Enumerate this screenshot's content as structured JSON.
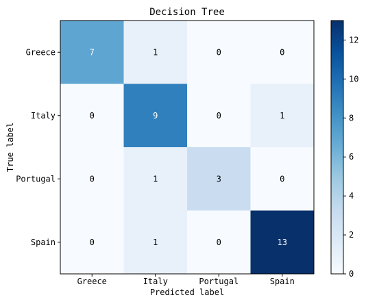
{
  "chart_data": {
    "type": "heatmap",
    "title": "Decision Tree",
    "xlabel": "Predicted label",
    "ylabel": "True label",
    "x_categories": [
      "Greece",
      "Italy",
      "Portugal",
      "Spain"
    ],
    "y_categories": [
      "Greece",
      "Italy",
      "Portugal",
      "Spain"
    ],
    "values": [
      [
        7,
        1,
        0,
        0
      ],
      [
        0,
        9,
        0,
        1
      ],
      [
        0,
        1,
        3,
        0
      ],
      [
        0,
        1,
        0,
        13
      ]
    ],
    "colormap": "Blues",
    "vmin": 0,
    "vmax": 13,
    "colorbar_ticks": [
      "0",
      "2",
      "4",
      "6",
      "8",
      "10",
      "12"
    ],
    "grid": false,
    "colors": {
      "low": "#f7fbff",
      "high": "#08306b",
      "text_dark": "#000000",
      "text_light": "#ffffff"
    }
  }
}
